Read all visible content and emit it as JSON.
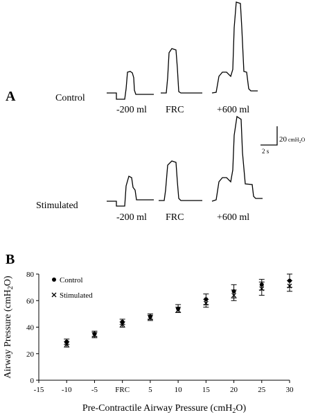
{
  "panel_a": {
    "label": "A",
    "rows": [
      {
        "name": "Control",
        "volume_labels": [
          "-200 ml",
          "FRC",
          "+600 ml"
        ]
      },
      {
        "name": "Stimulated",
        "volume_labels": [
          "-200 ml",
          "FRC",
          "+600 ml"
        ]
      }
    ],
    "scale_bar": {
      "pressure": "20",
      "pressure_unit": "cmH",
      "pressure_sub": "2",
      "pressure_tail": "O",
      "time": "2 s"
    }
  },
  "panel_b": {
    "label": "B"
  },
  "chart_data": {
    "type": "scatter",
    "xlabel": "Pre-Contractile Airway Pressure (cmH2O)",
    "ylabel": "Airway Pressure (cmH2O)",
    "xlim": [
      -15,
      30
    ],
    "ylim": [
      0,
      80
    ],
    "x_ticks": [
      "-15",
      "-10",
      "-5",
      "FRC",
      "5",
      "10",
      "15",
      "20",
      "25",
      "30"
    ],
    "x_tick_values": [
      -15,
      -10,
      -5,
      0,
      5,
      10,
      15,
      20,
      25,
      30
    ],
    "y_ticks": [
      0,
      20,
      40,
      60,
      80
    ],
    "legend_position": "top-left",
    "series": [
      {
        "name": "Control",
        "marker": "circle",
        "x": [
          -10,
          -5,
          0,
          5,
          10,
          15,
          20,
          25,
          30
        ],
        "y": [
          29,
          35,
          44,
          48,
          54,
          61,
          67,
          72,
          75
        ],
        "err": [
          2,
          2,
          2,
          2,
          3,
          4,
          5,
          4,
          5
        ]
      },
      {
        "name": "Stimulated",
        "marker": "x",
        "x": [
          -10,
          -5,
          0,
          5,
          10,
          15,
          20,
          25,
          30
        ],
        "y": [
          27,
          34,
          42,
          47,
          53,
          58,
          64,
          69,
          71
        ],
        "err": [
          2,
          2,
          2,
          2,
          2,
          3,
          4,
          5,
          4
        ]
      }
    ]
  }
}
